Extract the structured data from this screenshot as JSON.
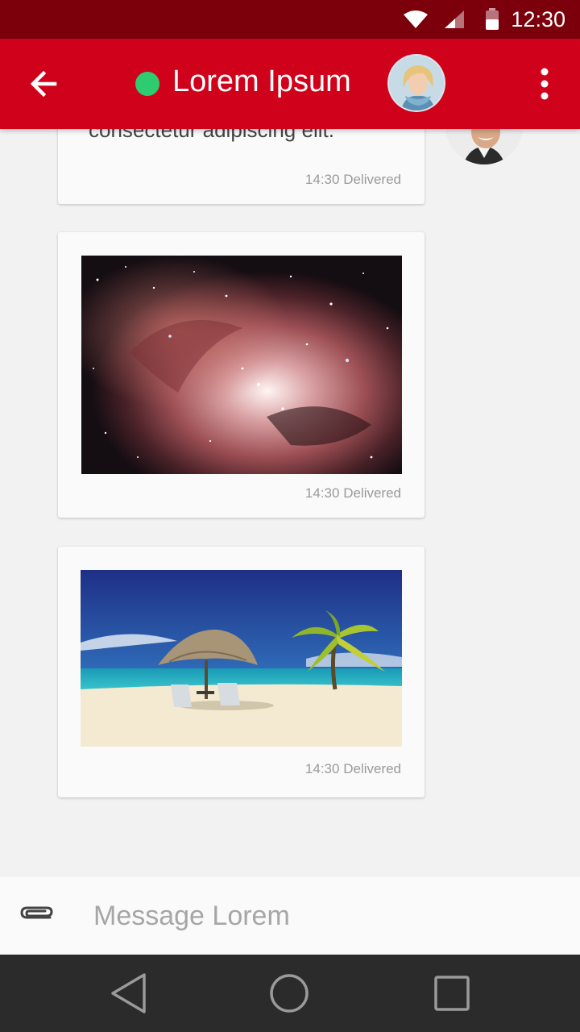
{
  "status_bar": {
    "time": "12:30"
  },
  "app_bar": {
    "title": "Lorem Ipsum",
    "presence_color": "#2ecc71",
    "back_icon": "arrow-back-icon",
    "menu_icon": "more-vert-icon"
  },
  "messages": [
    {
      "type": "text",
      "text": "consectetur adipiscing elit.",
      "time": "14:30",
      "status": "Delivered"
    },
    {
      "type": "image",
      "image": "nebula",
      "time": "14:30",
      "status": "Delivered"
    },
    {
      "type": "image",
      "image": "beach",
      "time": "14:30",
      "status": "Delivered"
    }
  ],
  "composer": {
    "placeholder": "Message Lorem",
    "attach_icon": "paperclip-icon"
  },
  "nav_bar": {
    "back_icon": "nav-back-icon",
    "home_icon": "nav-home-icon",
    "recents_icon": "nav-recents-icon"
  },
  "colors": {
    "status_bar": "#7b000c",
    "app_bar": "#d0021b",
    "chat_bg": "#f2f2f2",
    "bubble": "#fafafa"
  }
}
